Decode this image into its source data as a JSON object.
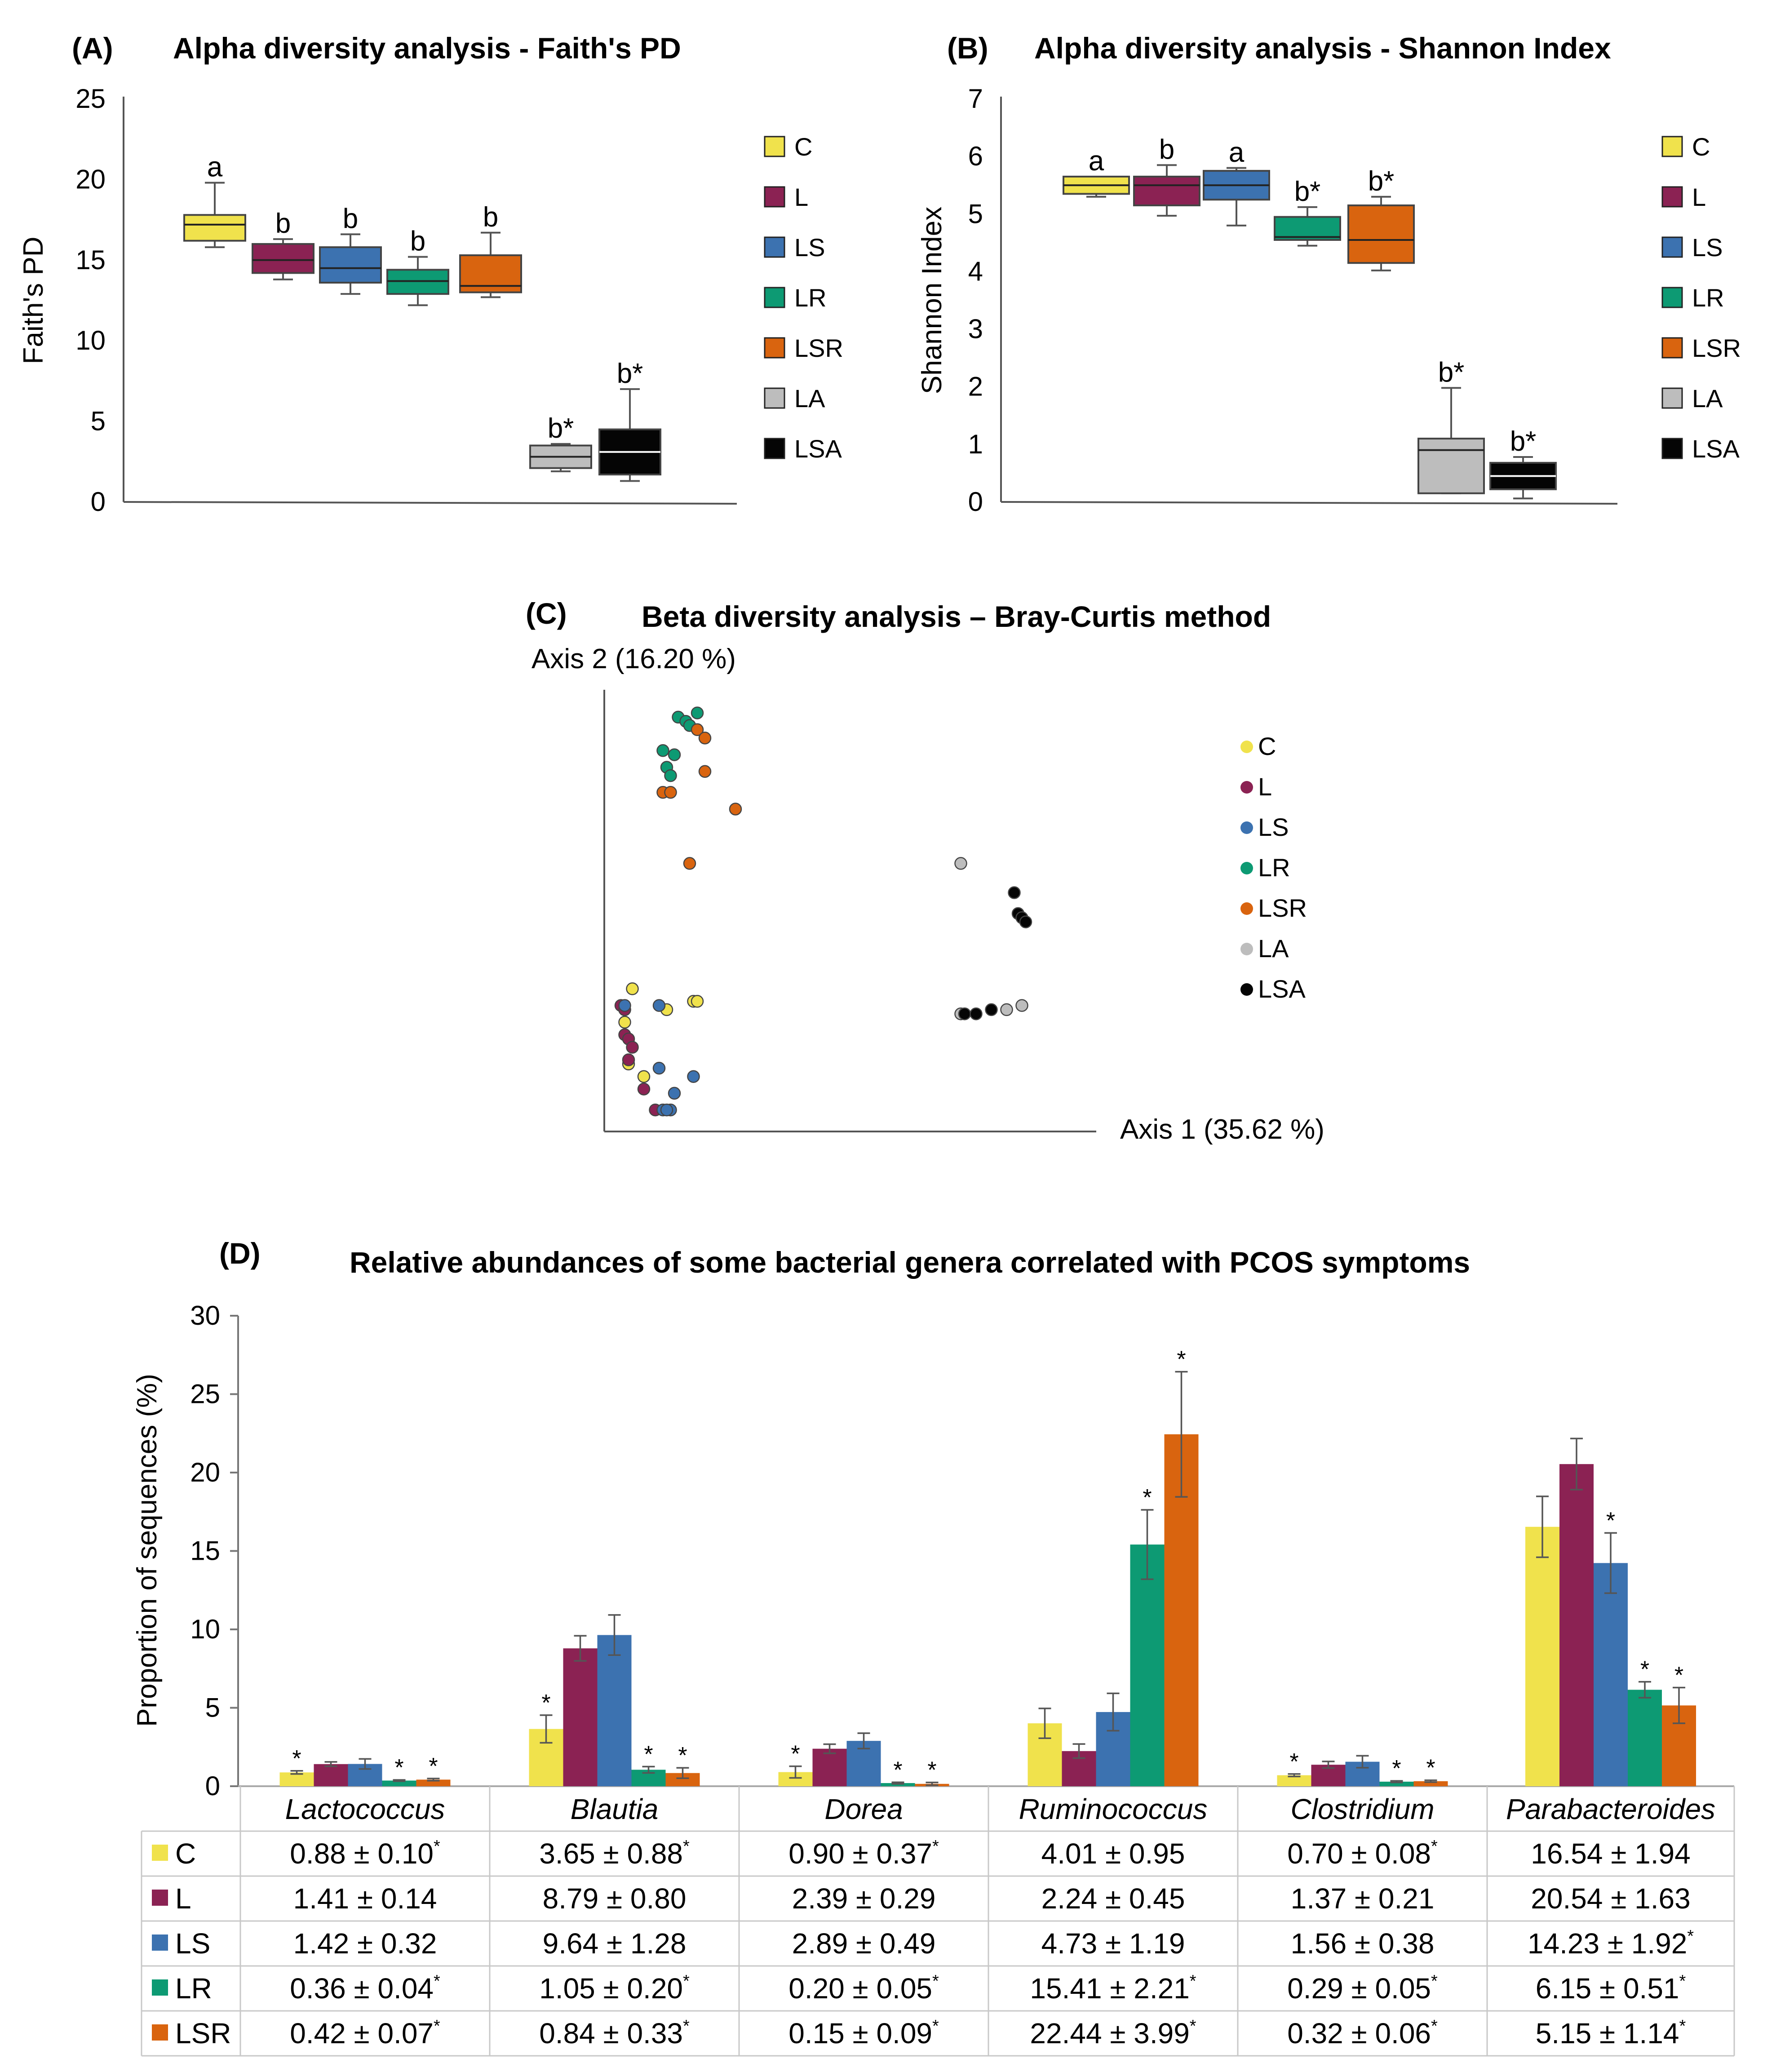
{
  "colors": {
    "C": "#f0e24c",
    "L": "#8b2253",
    "LS": "#3c72b0",
    "LR": "#0d9a73",
    "LSR": "#d9640f",
    "LA": "#bdbdbd",
    "LSA": "#050505"
  },
  "groups": [
    "C",
    "L",
    "LS",
    "LR",
    "LSR",
    "LA",
    "LSA"
  ],
  "chart_data": [
    {
      "id": "A",
      "panel_label": "(A)",
      "type": "box",
      "title": "Alpha diversity analysis - Faith's PD",
      "ylabel": "Faith's PD",
      "ylim": [
        0,
        25
      ],
      "yticks": [
        "0",
        "5",
        "10",
        "15",
        "20",
        "25"
      ],
      "legend": [
        "C",
        "L",
        "LS",
        "LR",
        "LSR",
        "LA",
        "LSA"
      ],
      "boxes": [
        {
          "group": "C",
          "min": 15.8,
          "q1": 16.2,
          "median": 17.2,
          "q3": 17.8,
          "max": 19.8,
          "label": "a"
        },
        {
          "group": "L",
          "min": 13.8,
          "q1": 14.2,
          "median": 15.0,
          "q3": 16.0,
          "max": 16.3,
          "label": "b"
        },
        {
          "group": "LS",
          "min": 12.9,
          "q1": 13.6,
          "median": 14.5,
          "q3": 15.8,
          "max": 16.6,
          "label": "b"
        },
        {
          "group": "LR",
          "min": 12.2,
          "q1": 12.9,
          "median": 13.7,
          "q3": 14.4,
          "max": 15.2,
          "label": "b"
        },
        {
          "group": "LSR",
          "min": 12.7,
          "q1": 13.0,
          "median": 13.4,
          "q3": 15.3,
          "max": 16.7,
          "label": "b"
        },
        {
          "group": "LA",
          "min": 1.9,
          "q1": 2.1,
          "median": 2.8,
          "q3": 3.5,
          "max": 3.6,
          "label": "b*"
        },
        {
          "group": "LSA",
          "min": 1.3,
          "q1": 1.7,
          "median": 3.1,
          "q3": 4.5,
          "max": 7.0,
          "label": "b*"
        }
      ]
    },
    {
      "id": "B",
      "panel_label": "(B)",
      "type": "box",
      "title": "Alpha diversity analysis - Shannon Index",
      "ylabel": "Shannon Index",
      "ylim": [
        0,
        7
      ],
      "yticks": [
        "0",
        "1",
        "2",
        "3",
        "4",
        "5",
        "6",
        "7"
      ],
      "legend": [
        "C",
        "L",
        "LS",
        "LR",
        "LSR",
        "LA",
        "LSA"
      ],
      "boxes": [
        {
          "group": "C",
          "min": 5.3,
          "q1": 5.35,
          "median": 5.5,
          "q3": 5.65,
          "max": 5.65,
          "label": "a"
        },
        {
          "group": "L",
          "min": 4.97,
          "q1": 5.15,
          "median": 5.5,
          "q3": 5.65,
          "max": 5.85,
          "label": "b"
        },
        {
          "group": "LS",
          "min": 4.8,
          "q1": 5.25,
          "median": 5.5,
          "q3": 5.75,
          "max": 5.8,
          "label": "a"
        },
        {
          "group": "LR",
          "min": 4.45,
          "q1": 4.55,
          "median": 4.6,
          "q3": 4.95,
          "max": 5.12,
          "label": "b*"
        },
        {
          "group": "LSR",
          "min": 4.02,
          "q1": 4.15,
          "median": 4.55,
          "q3": 5.15,
          "max": 5.3,
          "label": "b*"
        },
        {
          "group": "LA",
          "min": 0.15,
          "q1": 0.15,
          "median": 0.9,
          "q3": 1.1,
          "max": 1.98,
          "label": "b*"
        },
        {
          "group": "LSA",
          "min": 0.06,
          "q1": 0.22,
          "median": 0.45,
          "q3": 0.68,
          "max": 0.78,
          "label": "b*"
        }
      ]
    },
    {
      "id": "C",
      "panel_label": "(C)",
      "type": "scatter",
      "title": "Beta diversity analysis – Bray-Curtis method",
      "xlabel": "Axis 1 (35.62 %)",
      "ylabel": "Axis 2 (16.20 %)",
      "xlim": [
        0,
        100
      ],
      "ylim": [
        0,
        100
      ],
      "legend": [
        "C",
        "L",
        "LS",
        "LR",
        "LSR",
        "LA",
        "LSA"
      ],
      "points": {
        "LR": [
          [
            17,
            97
          ],
          [
            19,
            96
          ],
          [
            22,
            98
          ],
          [
            20,
            95
          ],
          [
            13,
            89
          ],
          [
            16,
            88
          ],
          [
            14,
            85
          ],
          [
            15,
            83
          ]
        ],
        "LSR": [
          [
            22,
            94
          ],
          [
            24,
            92
          ],
          [
            24,
            84
          ],
          [
            13,
            79
          ],
          [
            15,
            79
          ],
          [
            32,
            75
          ],
          [
            20,
            62
          ]
        ],
        "C": [
          [
            5,
            32
          ],
          [
            21,
            29
          ],
          [
            22,
            29
          ],
          [
            14,
            27
          ],
          [
            3,
            24
          ],
          [
            4,
            14
          ],
          [
            8,
            11
          ],
          [
            3,
            27
          ]
        ],
        "L": [
          [
            2,
            28
          ],
          [
            3,
            27
          ],
          [
            3,
            21
          ],
          [
            4,
            20
          ],
          [
            5,
            18
          ],
          [
            4,
            15
          ],
          [
            8,
            8
          ],
          [
            11,
            3
          ]
        ],
        "LS": [
          [
            3,
            28
          ],
          [
            12,
            28
          ],
          [
            13,
            3
          ],
          [
            15,
            3
          ],
          [
            16,
            7
          ],
          [
            12,
            13
          ],
          [
            21,
            11
          ],
          [
            14,
            3
          ]
        ],
        "LA": [
          [
            91,
            62
          ],
          [
            91,
            26
          ],
          [
            103,
            27
          ],
          [
            107,
            28
          ]
        ],
        "LSA": [
          [
            105,
            55
          ],
          [
            106,
            50
          ],
          [
            107,
            49
          ],
          [
            108,
            48
          ],
          [
            92,
            26
          ],
          [
            95,
            26
          ],
          [
            99,
            27
          ]
        ]
      }
    },
    {
      "id": "D",
      "panel_label": "(D)",
      "type": "bar",
      "title": "Relative abundances of some bacterial genera correlated with PCOS symptoms",
      "ylabel": "Proportion of sequences (%)",
      "ylim": [
        0,
        30
      ],
      "yticks": [
        "0",
        "5",
        "10",
        "15",
        "20",
        "25",
        "30"
      ],
      "categories": [
        "Lactococcus",
        "Blautia",
        "Dorea",
        "Ruminococcus",
        "Clostridium",
        "Parabacteroides"
      ],
      "series": [
        {
          "name": "C",
          "values": [
            0.88,
            3.65,
            0.9,
            4.01,
            0.7,
            16.54
          ],
          "errors": [
            0.1,
            0.88,
            0.37,
            0.95,
            0.08,
            1.94
          ],
          "sig": [
            true,
            true,
            true,
            false,
            true,
            false
          ],
          "cells": [
            "0.88 ± 0.10",
            "3.65 ± 0.88",
            "0.90 ± 0.37",
            "4.01 ± 0.95",
            "0.70 ± 0.08",
            "16.54 ± 1.94"
          ]
        },
        {
          "name": "L",
          "values": [
            1.41,
            8.79,
            2.39,
            2.24,
            1.37,
            20.54
          ],
          "errors": [
            0.14,
            0.8,
            0.29,
            0.45,
            0.21,
            1.63
          ],
          "sig": [
            false,
            false,
            false,
            false,
            false,
            false
          ],
          "cells": [
            "1.41 ± 0.14",
            "8.79 ± 0.80",
            "2.39 ± 0.29",
            "2.24 ± 0.45",
            "1.37 ± 0.21",
            "20.54 ± 1.63"
          ]
        },
        {
          "name": "LS",
          "values": [
            1.42,
            9.64,
            2.89,
            4.73,
            1.56,
            14.23
          ],
          "errors": [
            0.32,
            1.28,
            0.49,
            1.19,
            0.38,
            1.92
          ],
          "sig": [
            false,
            false,
            false,
            false,
            false,
            true
          ],
          "cells": [
            "1.42 ± 0.32",
            "9.64 ± 1.28",
            "2.89 ± 0.49",
            "4.73 ± 1.19",
            "1.56 ± 0.38",
            "14.23 ± 1.92"
          ]
        },
        {
          "name": "LR",
          "values": [
            0.36,
            1.05,
            0.2,
            15.41,
            0.29,
            6.15
          ],
          "errors": [
            0.04,
            0.2,
            0.05,
            2.21,
            0.05,
            0.51
          ],
          "sig": [
            true,
            true,
            true,
            true,
            true,
            true
          ],
          "cells": [
            "0.36 ± 0.04",
            "1.05 ± 0.20",
            "0.20 ± 0.05",
            "15.41 ± 2.21",
            "0.29 ± 0.05",
            "6.15 ± 0.51"
          ]
        },
        {
          "name": "LSR",
          "values": [
            0.42,
            0.84,
            0.15,
            22.44,
            0.32,
            5.15
          ],
          "errors": [
            0.07,
            0.33,
            0.09,
            3.99,
            0.06,
            1.14
          ],
          "sig": [
            true,
            true,
            true,
            true,
            true,
            true
          ],
          "cells": [
            "0.42 ± 0.07",
            "0.84 ± 0.33",
            "0.15 ± 0.09",
            "22.44 ± 3.99",
            "0.32 ± 0.06",
            "5.15 ± 1.14"
          ]
        }
      ],
      "sig_marker": "*"
    }
  ]
}
